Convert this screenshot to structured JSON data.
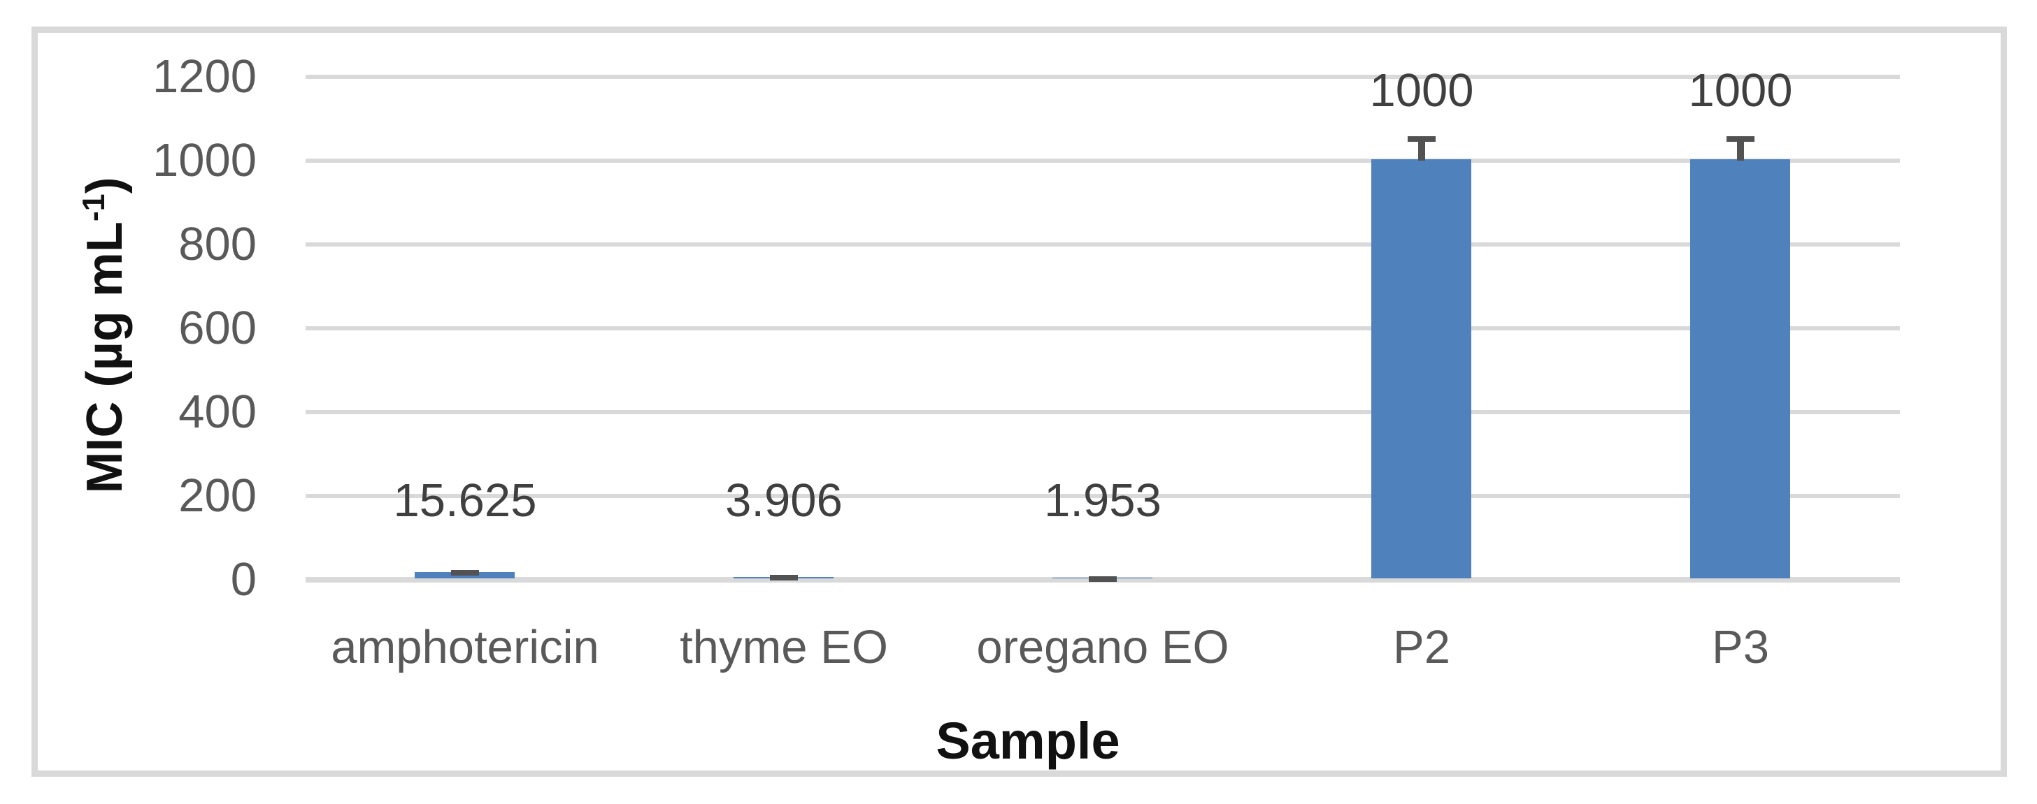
{
  "chart_data": {
    "type": "bar",
    "title": "",
    "xlabel": "Sample",
    "ylabel": "MIC (µg mL-1)",
    "ylabel_base": "MIC (µg mL",
    "ylabel_sup": "-1",
    "ylabel_close": ")",
    "categories": [
      "amphotericin",
      "thyme EO",
      "oregano EO",
      "P2",
      "P3"
    ],
    "values": [
      15.625,
      3.906,
      1.953,
      1000,
      1000
    ],
    "data_labels": [
      "15.625",
      "3.906",
      "1.953",
      "1000",
      "1000"
    ],
    "error_upper": [
      5,
      4,
      3,
      55,
      55
    ],
    "yticks": [
      0,
      200,
      400,
      600,
      800,
      1000,
      1200
    ],
    "ytick_labels": [
      "0",
      "200",
      "400",
      "600",
      "800",
      "1000",
      "1200"
    ],
    "ylim": [
      0,
      1200
    ],
    "grid": "horizontal",
    "legend": "none",
    "colors": {
      "bar": "#4F81BD",
      "error_bar": "#525252",
      "gridline": "#D9D9D9",
      "frame_border": "#D9D9D9",
      "tick_label": "#595959",
      "category_label": "#595959",
      "data_label": "#3F3F3F",
      "axis_title": "#111111",
      "background": "#FFFFFF"
    }
  }
}
